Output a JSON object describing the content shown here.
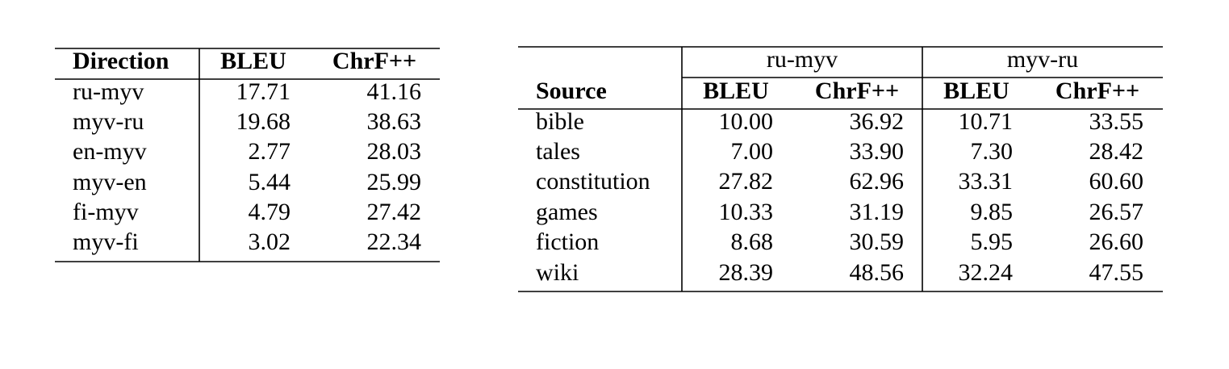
{
  "table1": {
    "headers": [
      "Direction",
      "BLEU",
      "ChrF++"
    ],
    "rows": [
      [
        "ru-myv",
        "17.71",
        "41.16"
      ],
      [
        "myv-ru",
        "19.68",
        "38.63"
      ],
      [
        "en-myv",
        "2.77",
        "28.03"
      ],
      [
        "myv-en",
        "5.44",
        "25.99"
      ],
      [
        "fi-myv",
        "4.79",
        "27.42"
      ],
      [
        "myv-fi",
        "3.02",
        "22.34"
      ]
    ]
  },
  "table2": {
    "groups": [
      "ru-myv",
      "myv-ru"
    ],
    "headers": [
      "Source",
      "BLEU",
      "ChrF++",
      "BLEU",
      "ChrF++"
    ],
    "rows": [
      [
        "bible",
        "10.00",
        "36.92",
        "10.71",
        "33.55"
      ],
      [
        "tales",
        "7.00",
        "33.90",
        "7.30",
        "28.42"
      ],
      [
        "constitution",
        "27.82",
        "62.96",
        "33.31",
        "60.60"
      ],
      [
        "games",
        "10.33",
        "31.19",
        "9.85",
        "26.57"
      ],
      [
        "fiction",
        "8.68",
        "30.59",
        "5.95",
        "26.60"
      ],
      [
        "wiki",
        "28.39",
        "48.56",
        "32.24",
        "47.55"
      ]
    ]
  }
}
